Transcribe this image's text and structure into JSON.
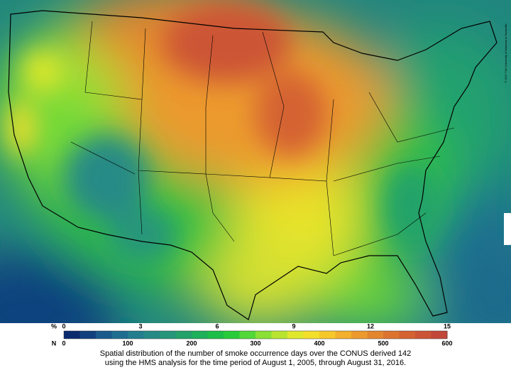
{
  "map": {
    "credit": "© 2017 The University of Alabama in Huntsville",
    "colorbar": {
      "percent_label": "%",
      "percent_ticks": [
        "0",
        "3",
        "6",
        "9",
        "12",
        "15"
      ],
      "count_label": "N",
      "count_ticks": [
        "0",
        "100",
        "200",
        "300",
        "400",
        "500",
        "600"
      ],
      "colors": [
        "#0a2a6e",
        "#12407e",
        "#1a5a8c",
        "#1f6e90",
        "#237e8e",
        "#258a86",
        "#26967a",
        "#24a26a",
        "#1eb05a",
        "#1cbe48",
        "#28cc3a",
        "#52d838",
        "#8ae034",
        "#b8e430",
        "#e0e82c",
        "#f4e02a",
        "#f6c82a",
        "#f2b02c",
        "#ec9a2e",
        "#e4862e",
        "#dc7430",
        "#d46232",
        "#cc5436",
        "#c2483a"
      ]
    },
    "caption": [
      "Spatial distribution of the number of smoke occurrence days over the CONUS derived 142",
      "using the HMS analysis for the time period of August 1, 2005, through August 31, 2016."
    ]
  }
}
